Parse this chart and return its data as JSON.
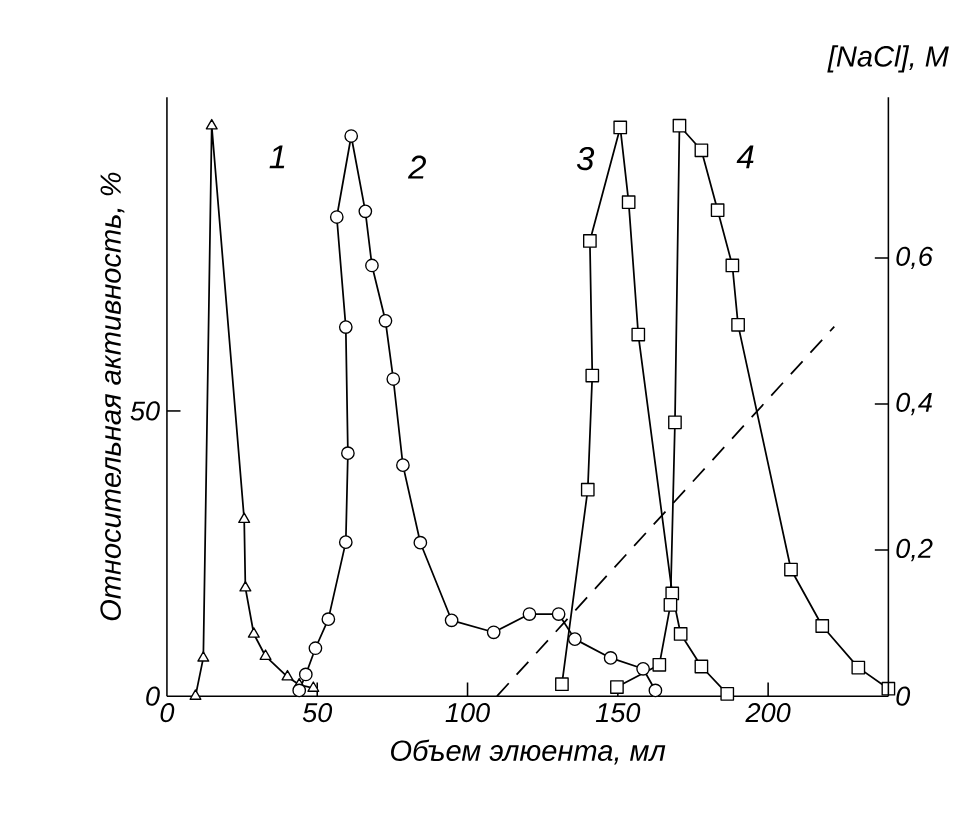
{
  "chart_data": {
    "type": "line",
    "xlabel": "Объем элюента, мл",
    "ylabel": "Относительная активность, %",
    "y2label": "[NaCl], M",
    "xlim": [
      0,
      240
    ],
    "xticks": [
      0,
      50,
      100,
      150,
      200
    ],
    "ylim": [
      0,
      105
    ],
    "yticks": [
      0,
      50
    ],
    "y2lim": [
      0,
      0.82
    ],
    "y2ticks": [
      0,
      {
        "value": 0.2,
        "label": "0,2"
      },
      {
        "value": 0.4,
        "label": "0,4"
      },
      {
        "value": 0.6,
        "label": "0,6"
      }
    ],
    "series": [
      {
        "name": "1",
        "color": "#000000",
        "marker": "triangle",
        "line_style": "solid",
        "x": [
          9.5,
          12.1,
          14.9,
          25.7,
          26.1,
          28.9,
          32.8,
          40.1,
          44,
          48.7
        ],
        "values": [
          0,
          6.7,
          100,
          31,
          19,
          10.9,
          7,
          3.4,
          2,
          1.4
        ]
      },
      {
        "name": "2",
        "color": "#000000",
        "marker": "circle",
        "line_style": "solid",
        "x": [
          44,
          46.2,
          49.4,
          53.7,
          59.5,
          60.2,
          59.5,
          56.5,
          61.3,
          66,
          68.2,
          72.7,
          75.3,
          78.5,
          84.3,
          94.7,
          108.7,
          120.6,
          130.3,
          135.7,
          147.6,
          158.4,
          162.5
        ],
        "values": [
          1,
          3.8,
          8.4,
          13.5,
          27,
          42.6,
          64.7,
          84,
          98.2,
          85,
          75.5,
          65.8,
          55.6,
          40.5,
          26.9,
          13.3,
          11.2,
          14.4,
          14.4,
          10,
          6.7,
          4.8,
          1
        ]
      },
      {
        "name": "3",
        "color": "#000000",
        "marker": "square",
        "line_style": "solid",
        "x": [
          131.4,
          140,
          141.5,
          140.7,
          150.8,
          153.6,
          156.8,
          168.1,
          170.9,
          177.8,
          186.4
        ],
        "values": [
          2.1,
          36.2,
          56.2,
          79.8,
          99.7,
          86.6,
          63.4,
          18,
          10.9,
          5.2,
          0.4
        ]
      },
      {
        "name": "4",
        "color": "#000000",
        "marker": "square",
        "line_style": "solid",
        "x": [
          149.7,
          163.8,
          167.5,
          169,
          170.5,
          177.8,
          183.2,
          188.1,
          190,
          207.6,
          218,
          230,
          240
        ],
        "values": [
          1.6,
          5.5,
          16,
          48,
          100,
          95.7,
          85.2,
          75.5,
          65.1,
          22.2,
          12.3,
          5,
          1.3
        ]
      },
      {
        "color": "#000000",
        "marker": "none",
        "line_style": "dashed",
        "axis": "y2",
        "x": [
          109.8,
          222
        ],
        "values": [
          0,
          0.506
        ]
      }
    ]
  }
}
